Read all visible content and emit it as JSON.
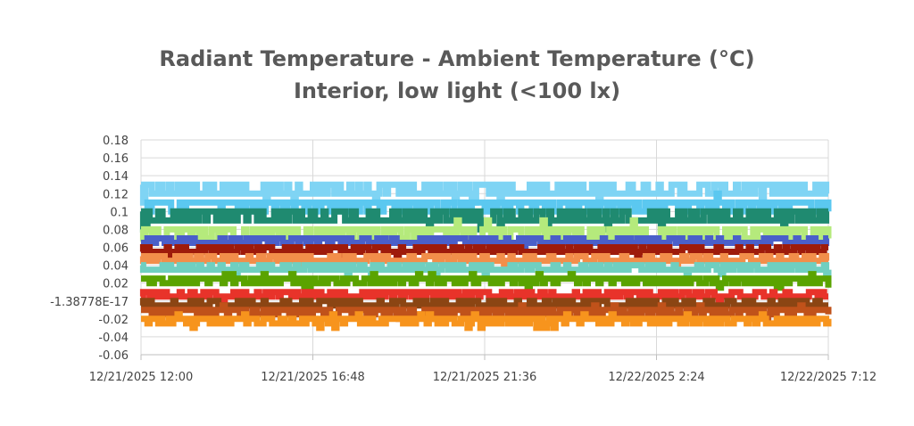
{
  "chart_data": {
    "type": "line",
    "title": "Radiant Temperature - Ambient Temperature (°C)",
    "subtitle": "Interior, low light (<100 lx)",
    "xlabel": "",
    "ylabel": "",
    "ylim": [
      -0.06,
      0.18
    ],
    "y_ticks": [
      "0.18",
      "0.16",
      "0.14",
      "0.12",
      "0.1",
      "0.08",
      "0.06",
      "0.04",
      "0.02",
      "-1.38778E-17",
      "-0.02",
      "-0.04",
      "-0.06"
    ],
    "x_ticks": [
      "12/21/2025 12:00",
      "12/21/2025 16:48",
      "12/21/2025 21:36",
      "12/22/2025 2:24",
      "12/22/2025 7:12"
    ],
    "x_range": [
      "12/21/2025 12:00",
      "12/22/2025 7:12"
    ],
    "grid": true,
    "legend": "none",
    "series": [
      {
        "color": "#7fd4f4",
        "base": 0.12,
        "alt": 0.13,
        "values_range": [
          0.11,
          0.13
        ]
      },
      {
        "color": "#5bc8f0",
        "base": 0.11,
        "alt": 0.1,
        "values_range": [
          0.1,
          0.12
        ]
      },
      {
        "color": "#1f8a70",
        "base": 0.09,
        "alt": 0.1,
        "values_range": [
          0.08,
          0.1
        ]
      },
      {
        "color": "#b5ea7c",
        "base": 0.08,
        "alt": 0.07,
        "values_range": [
          0.07,
          0.09
        ]
      },
      {
        "color": "#4a5fc9",
        "base": 0.065,
        "alt": 0.07,
        "values_range": [
          0.06,
          0.07
        ]
      },
      {
        "color": "#9e1b0b",
        "base": 0.055,
        "alt": 0.06,
        "values_range": [
          0.05,
          0.06
        ]
      },
      {
        "color": "#f28e4a",
        "base": 0.045,
        "alt": 0.05,
        "values_range": [
          0.04,
          0.05
        ]
      },
      {
        "color": "#6fcfc0",
        "base": 0.035,
        "alt": 0.04,
        "values_range": [
          0.03,
          0.04
        ]
      },
      {
        "color": "#5aa300",
        "base": 0.025,
        "alt": 0.02,
        "values_range": [
          0.015,
          0.03
        ]
      },
      {
        "color": "#e8332a",
        "base": 0.005,
        "alt": 0.01,
        "values_range": [
          0.0,
          0.01
        ]
      },
      {
        "color": "#8b4513",
        "base": -0.005,
        "alt": 0.0,
        "values_range": [
          -0.01,
          0.0
        ]
      },
      {
        "color": "#c0521a",
        "base": -0.01,
        "alt": -0.015,
        "values_range": [
          -0.02,
          -0.005
        ]
      },
      {
        "color": "#f7941d",
        "base": -0.02,
        "alt": -0.025,
        "values_range": [
          -0.03,
          -0.015
        ]
      }
    ]
  }
}
